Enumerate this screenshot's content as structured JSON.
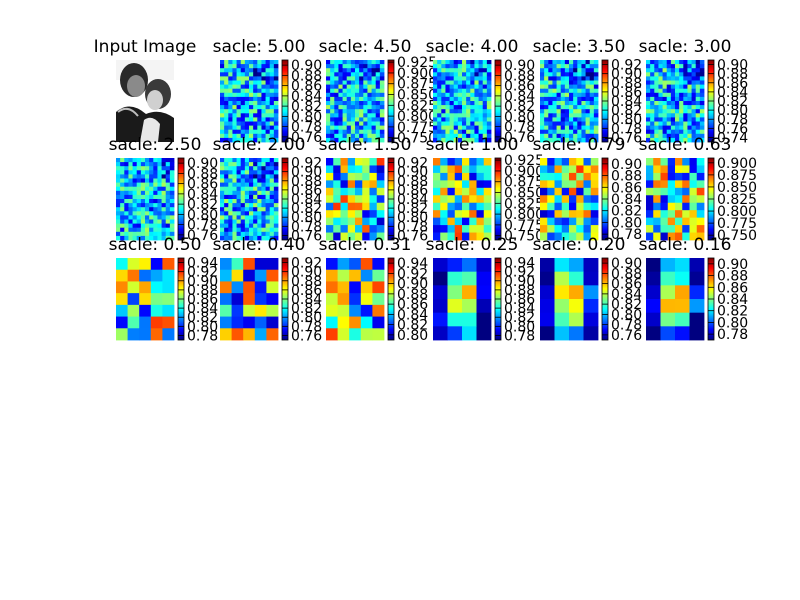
{
  "figure": {
    "input_title": "Input Image",
    "colormap": "jet",
    "background": "#ffffff"
  },
  "chart_data": [
    {
      "type": "heatmap",
      "title": "sacle: 5.00",
      "colorbar_ticks": [
        "0.90",
        "0.88",
        "0.86",
        "0.84",
        "0.82",
        "0.80",
        "0.78",
        "0.76"
      ],
      "range": [
        0.75,
        0.91
      ],
      "pattern": "fine"
    },
    {
      "type": "heatmap",
      "title": "sacle: 4.50",
      "colorbar_ticks": [
        "0.925",
        "0.900",
        "0.875",
        "0.850",
        "0.825",
        "0.800",
        "0.775",
        "0.750"
      ],
      "range": [
        0.74,
        0.93
      ],
      "pattern": "fine"
    },
    {
      "type": "heatmap",
      "title": "sacle: 4.00",
      "colorbar_ticks": [
        "0.90",
        "0.88",
        "0.86",
        "0.84",
        "0.82",
        "0.80",
        "0.78",
        "0.76"
      ],
      "range": [
        0.75,
        0.91
      ],
      "pattern": "fine"
    },
    {
      "type": "heatmap",
      "title": "sacle: 3.50",
      "colorbar_ticks": [
        "0.92",
        "0.90",
        "0.88",
        "0.86",
        "0.84",
        "0.82",
        "0.80",
        "0.78",
        "0.76"
      ],
      "range": [
        0.75,
        0.93
      ],
      "pattern": "fine"
    },
    {
      "type": "heatmap",
      "title": "sacle: 3.00",
      "colorbar_ticks": [
        "0.90",
        "0.88",
        "0.86",
        "0.84",
        "0.82",
        "0.80",
        "0.78",
        "0.76",
        "0.74"
      ],
      "range": [
        0.73,
        0.91
      ],
      "pattern": "fine"
    },
    {
      "type": "heatmap",
      "title": "sacle: 2.50",
      "colorbar_ticks": [
        "0.90",
        "0.88",
        "0.86",
        "0.84",
        "0.82",
        "0.80",
        "0.78",
        "0.76"
      ],
      "range": [
        0.75,
        0.91
      ],
      "pattern": "fine"
    },
    {
      "type": "heatmap",
      "title": "sacle: 2.00",
      "colorbar_ticks": [
        "0.92",
        "0.90",
        "0.88",
        "0.86",
        "0.84",
        "0.82",
        "0.80",
        "0.78",
        "0.76"
      ],
      "range": [
        0.75,
        0.93
      ],
      "pattern": "fine"
    },
    {
      "type": "heatmap",
      "title": "sacle: 1.50",
      "colorbar_ticks": [
        "0.92",
        "0.90",
        "0.88",
        "0.86",
        "0.84",
        "0.82",
        "0.80",
        "0.78",
        "0.76"
      ],
      "range": [
        0.75,
        0.93
      ],
      "pattern": "medium"
    },
    {
      "type": "heatmap",
      "title": "sacle: 1.00",
      "colorbar_ticks": [
        "0.925",
        "0.900",
        "0.875",
        "0.850",
        "0.825",
        "0.800",
        "0.775",
        "0.750"
      ],
      "range": [
        0.74,
        0.93
      ],
      "pattern": "medium"
    },
    {
      "type": "heatmap",
      "title": "sacle: 0.79",
      "colorbar_ticks": [
        "0.90",
        "0.88",
        "0.86",
        "0.84",
        "0.82",
        "0.80",
        "0.78"
      ],
      "range": [
        0.77,
        0.91
      ],
      "pattern": "medium"
    },
    {
      "type": "heatmap",
      "title": "sacle: 0.63",
      "colorbar_ticks": [
        "0.900",
        "0.875",
        "0.850",
        "0.825",
        "0.800",
        "0.775",
        "0.750"
      ],
      "range": [
        0.74,
        0.91
      ],
      "pattern": "medium"
    },
    {
      "type": "heatmap",
      "title": "sacle: 0.50",
      "colorbar_ticks": [
        "0.94",
        "0.92",
        "0.90",
        "0.88",
        "0.86",
        "0.84",
        "0.82",
        "0.80",
        "0.78"
      ],
      "range": [
        0.77,
        0.95
      ],
      "pattern": "coarse"
    },
    {
      "type": "heatmap",
      "title": "sacle: 0.40",
      "colorbar_ticks": [
        "0.92",
        "0.90",
        "0.88",
        "0.86",
        "0.84",
        "0.82",
        "0.80",
        "0.78",
        "0.76"
      ],
      "range": [
        0.75,
        0.93
      ],
      "pattern": "coarse"
    },
    {
      "type": "heatmap",
      "title": "sacle: 0.31",
      "colorbar_ticks": [
        "0.94",
        "0.92",
        "0.90",
        "0.88",
        "0.86",
        "0.84",
        "0.82",
        "0.80"
      ],
      "range": [
        0.79,
        0.95
      ],
      "pattern": "coarse"
    },
    {
      "type": "heatmap",
      "title": "sacle: 0.25",
      "colorbar_ticks": [
        "0.94",
        "0.92",
        "0.90",
        "0.88",
        "0.86",
        "0.84",
        "0.82",
        "0.80",
        "0.78"
      ],
      "range": [
        0.77,
        0.95
      ],
      "pattern": "blob"
    },
    {
      "type": "heatmap",
      "title": "sacle: 0.20",
      "colorbar_ticks": [
        "0.90",
        "0.88",
        "0.86",
        "0.84",
        "0.82",
        "0.80",
        "0.78",
        "0.76"
      ],
      "range": [
        0.75,
        0.91
      ],
      "pattern": "blob"
    },
    {
      "type": "heatmap",
      "title": "sacle: 0.16",
      "colorbar_ticks": [
        "0.90",
        "0.88",
        "0.86",
        "0.84",
        "0.82",
        "0.80",
        "0.78"
      ],
      "range": [
        0.77,
        0.91
      ],
      "pattern": "blob"
    }
  ]
}
